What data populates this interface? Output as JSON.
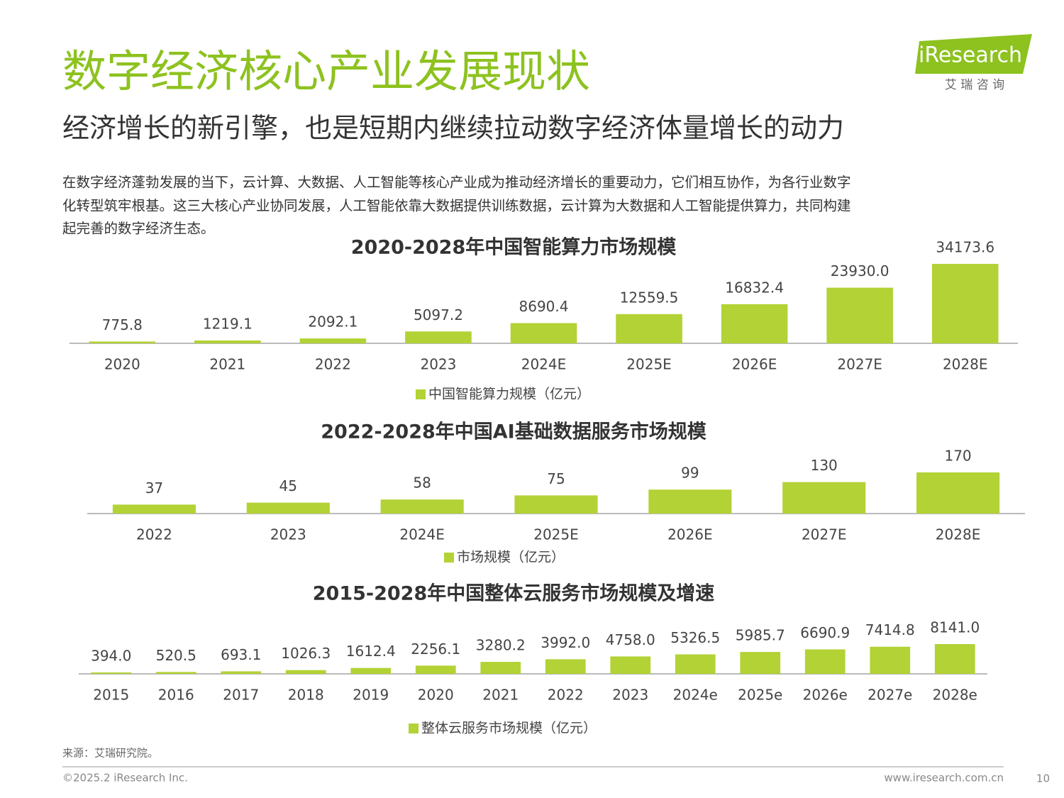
{
  "title": "数字经济核心产业发展现状",
  "subtitle": "经济增长的新引擎，也是短期内继续拉动数字经济体量增长的动力",
  "body": [
    "在数字经济蓬勃发展的当下，云计算、大数据、人工智能等核心产业成为推动经济增长的重要动力，它们相互协作，为各行业数字",
    "化转型筑牢根基。这三大核心产业协同发展，人工智能依靠大数据提供训练数据，云计算为大数据和人工智能提供算力，共同构建",
    "起完善的数字经济生态。"
  ],
  "logo": {
    "name": "iResearch",
    "tagline": "艾 瑞 咨 询"
  },
  "source": "来源：艾瑞研究院。",
  "copyright": "©2025.2 iResearch Inc.",
  "website": "www.iresearch.com.cn",
  "page": "10",
  "chart_data": [
    {
      "type": "bar",
      "title": "2020-2028年中国智能算力市场规模",
      "categories": [
        "2020",
        "2021",
        "2022",
        "2023",
        "2024E",
        "2025E",
        "2026E",
        "2027E",
        "2028E"
      ],
      "series": [
        {
          "name": "中国智能算力规模（亿元）",
          "color": "#b2d235",
          "values": [
            775.8,
            1219.1,
            2092.1,
            5097.2,
            8690.4,
            12559.5,
            16832.4,
            23930.0,
            34173.6
          ],
          "value_labels": [
            "775.8",
            "1219.1",
            "2092.1",
            "5097.2",
            "8690.4",
            "12559.5",
            "16832.4",
            "23930.0",
            "34173.6"
          ]
        }
      ]
    },
    {
      "type": "bar",
      "title": "2022-2028年中国AI基础数据服务市场规模",
      "categories": [
        "2022",
        "2023",
        "2024E",
        "2025E",
        "2026E",
        "2027E",
        "2028E"
      ],
      "series": [
        {
          "name": "市场规模（亿元）",
          "color": "#b2d235",
          "values": [
            37,
            45,
            58,
            75,
            99,
            130,
            170
          ]
        }
      ]
    },
    {
      "type": "bar",
      "title": "2015-2028年中国整体云服务市场规模及增速",
      "categories": [
        "2015",
        "2016",
        "2017",
        "2018",
        "2019",
        "2020",
        "2021",
        "2022",
        "2023",
        "2024e",
        "2025e",
        "2026e",
        "2027e",
        "2028e"
      ],
      "series": [
        {
          "name": "整体云服务市场规模（亿元）",
          "color": "#b2d235",
          "values": [
            394.0,
            520.5,
            693.1,
            1026.3,
            1612.4,
            2256.1,
            3280.2,
            3992.0,
            4758.0,
            5326.5,
            5985.7,
            6690.9,
            7414.8,
            8141.0
          ],
          "value_labels": [
            "394.0",
            "520.5",
            "693.1",
            "1026.3",
            "1612.4",
            "2256.1",
            "3280.2",
            "3992.0",
            "4758.0",
            "5326.5",
            "5985.7",
            "6690.9",
            "7414.8",
            "8141.0"
          ]
        }
      ]
    }
  ]
}
